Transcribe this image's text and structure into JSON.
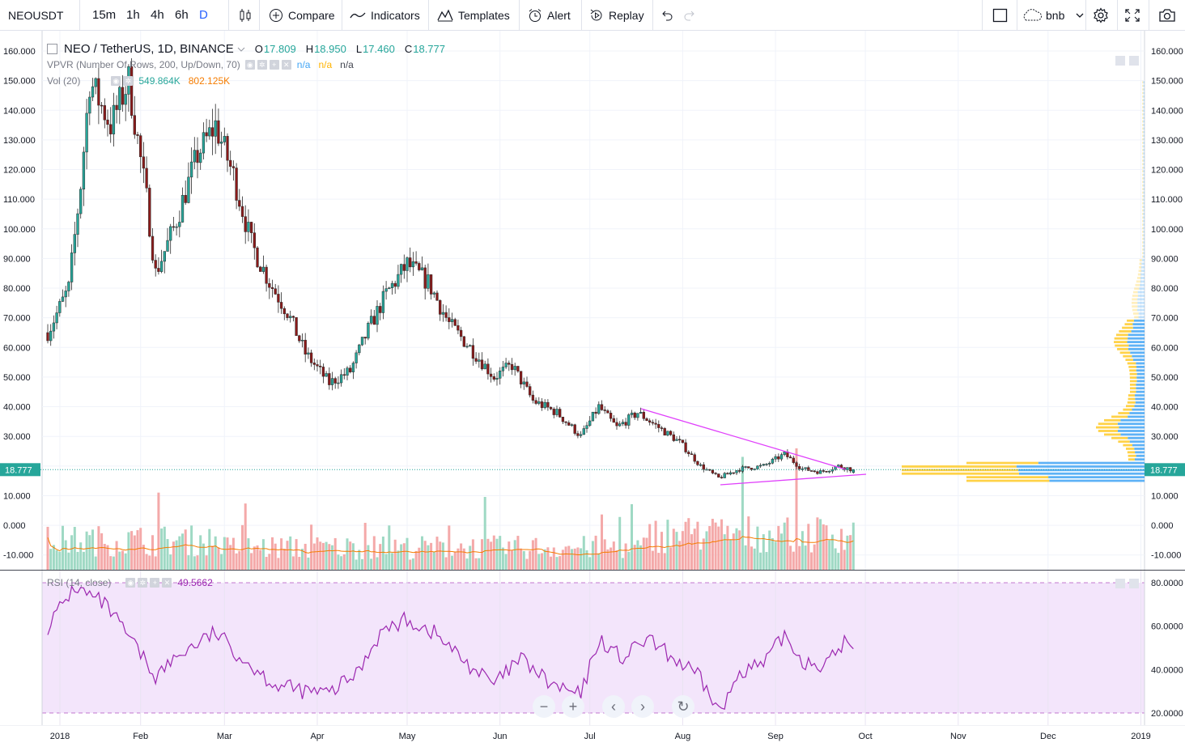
{
  "toolbar": {
    "symbol": "NEOUSDT",
    "timeframes": [
      "15m",
      "1h",
      "4h",
      "6h",
      "D"
    ],
    "active_timeframe": "D",
    "compare_label": "Compare",
    "indicators_label": "Indicators",
    "templates_label": "Templates",
    "alert_label": "Alert",
    "replay_label": "Replay",
    "layout_name": "bnb"
  },
  "legend": {
    "symbol_title": "NEO / TetherUS, 1D, BINANCE",
    "open_key": "O",
    "open": "17.809",
    "high_key": "H",
    "high": "18.950",
    "low_key": "L",
    "low": "17.460",
    "close_key": "C",
    "close": "18.777",
    "vpvr_name": "VPVR (Number Of Rows, 200, Up/Down, 70)",
    "vpvr_v1": "n/a",
    "vpvr_v2": "n/a",
    "vpvr_v3": "n/a",
    "vol_name": "Vol (20)",
    "vol_v1": "549.864K",
    "vol_v2": "802.125K",
    "rsi_name": "RSI (14, close)",
    "rsi_value": "49.5662"
  },
  "price_axis": {
    "labels": [
      "160.000",
      "150.000",
      "140.000",
      "130.000",
      "120.000",
      "110.000",
      "100.000",
      "90.000",
      "80.000",
      "70.000",
      "60.000",
      "50.000",
      "40.000",
      "30.000",
      "20.000",
      "10.000",
      "0.000",
      "-10.000"
    ],
    "last_price": "18.777"
  },
  "rsi_axis": {
    "labels": [
      "80.0000",
      "60.0000",
      "40.0000",
      "20.0000"
    ]
  },
  "time_axis": {
    "labels": [
      "2018",
      "Feb",
      "Mar",
      "Apr",
      "May",
      "Jun",
      "Jul",
      "Aug",
      "Sep",
      "Oct",
      "Nov",
      "Dec",
      "2019"
    ]
  },
  "colors": {
    "up": "#26a69a",
    "down": "#ef5350",
    "up_vol": "#9fd9c4",
    "down_vol": "#f4a9a9",
    "trendline": "#e040fb",
    "rsi": "#9c27b0",
    "rsi_band": "#f3e5fb",
    "vol_ma": "#f57c00",
    "vpvr_up": "#42a5f5",
    "vpvr_down": "#ffca28",
    "accent": "#2962ff"
  },
  "chart_data": {
    "type": "candlestick",
    "title": "NEO / TetherUS, 1D, BINANCE",
    "x_range": [
      "2018-01-01",
      "2019-01-01"
    ],
    "y_range": [
      -13,
      165
    ],
    "approx_close_path": [
      [
        "2018-01-01",
        65
      ],
      [
        "2018-01-08",
        80
      ],
      [
        "2018-01-12",
        115
      ],
      [
        "2018-01-15",
        150
      ],
      [
        "2018-01-22",
        135
      ],
      [
        "2018-01-28",
        150
      ],
      [
        "2018-02-03",
        110
      ],
      [
        "2018-02-06",
        85
      ],
      [
        "2018-02-12",
        100
      ],
      [
        "2018-02-20",
        125
      ],
      [
        "2018-02-26",
        135
      ],
      [
        "2018-03-04",
        118
      ],
      [
        "2018-03-10",
        95
      ],
      [
        "2018-03-16",
        82
      ],
      [
        "2018-03-22",
        72
      ],
      [
        "2018-03-28",
        58
      ],
      [
        "2018-04-05",
        48
      ],
      [
        "2018-04-12",
        52
      ],
      [
        "2018-04-18",
        66
      ],
      [
        "2018-04-24",
        78
      ],
      [
        "2018-05-01",
        88
      ],
      [
        "2018-05-08",
        82
      ],
      [
        "2018-05-15",
        68
      ],
      [
        "2018-05-22",
        60
      ],
      [
        "2018-05-30",
        50
      ],
      [
        "2018-06-05",
        54
      ],
      [
        "2018-06-12",
        42
      ],
      [
        "2018-06-20",
        38
      ],
      [
        "2018-06-28",
        30
      ],
      [
        "2018-07-04",
        40
      ],
      [
        "2018-07-10",
        33
      ],
      [
        "2018-07-17",
        38
      ],
      [
        "2018-07-24",
        33
      ],
      [
        "2018-07-31",
        28
      ],
      [
        "2018-08-07",
        20
      ],
      [
        "2018-08-13",
        16
      ],
      [
        "2018-08-20",
        19
      ],
      [
        "2018-08-28",
        20
      ],
      [
        "2018-09-04",
        24
      ],
      [
        "2018-09-10",
        19
      ],
      [
        "2018-09-16",
        18
      ],
      [
        "2018-09-22",
        20
      ],
      [
        "2018-09-27",
        18.777
      ]
    ],
    "rsi": {
      "name": "RSI (14, close)",
      "bands": [
        20,
        80
      ],
      "last": 49.5662,
      "approx_path": [
        [
          "2018-01-01",
          60
        ],
        [
          "2018-01-10",
          78
        ],
        [
          "2018-01-20",
          70
        ],
        [
          "2018-01-28",
          55
        ],
        [
          "2018-02-06",
          37
        ],
        [
          "2018-02-15",
          48
        ],
        [
          "2018-02-26",
          57
        ],
        [
          "2018-03-08",
          44
        ],
        [
          "2018-03-18",
          33
        ],
        [
          "2018-03-28",
          30
        ],
        [
          "2018-04-05",
          29
        ],
        [
          "2018-04-14",
          38
        ],
        [
          "2018-04-22",
          57
        ],
        [
          "2018-05-01",
          63
        ],
        [
          "2018-05-10",
          57
        ],
        [
          "2018-05-20",
          44
        ],
        [
          "2018-05-30",
          33
        ],
        [
          "2018-06-08",
          45
        ],
        [
          "2018-06-18",
          33
        ],
        [
          "2018-06-28",
          28
        ],
        [
          "2018-07-04",
          54
        ],
        [
          "2018-07-12",
          45
        ],
        [
          "2018-07-20",
          54
        ],
        [
          "2018-07-28",
          46
        ],
        [
          "2018-08-06",
          37
        ],
        [
          "2018-08-14",
          20
        ],
        [
          "2018-08-20",
          40
        ],
        [
          "2018-08-28",
          42
        ],
        [
          "2018-09-04",
          56
        ],
        [
          "2018-09-10",
          44
        ],
        [
          "2018-09-18",
          42
        ],
        [
          "2018-09-24",
          53
        ],
        [
          "2018-09-27",
          49.5662
        ]
      ]
    }
  }
}
